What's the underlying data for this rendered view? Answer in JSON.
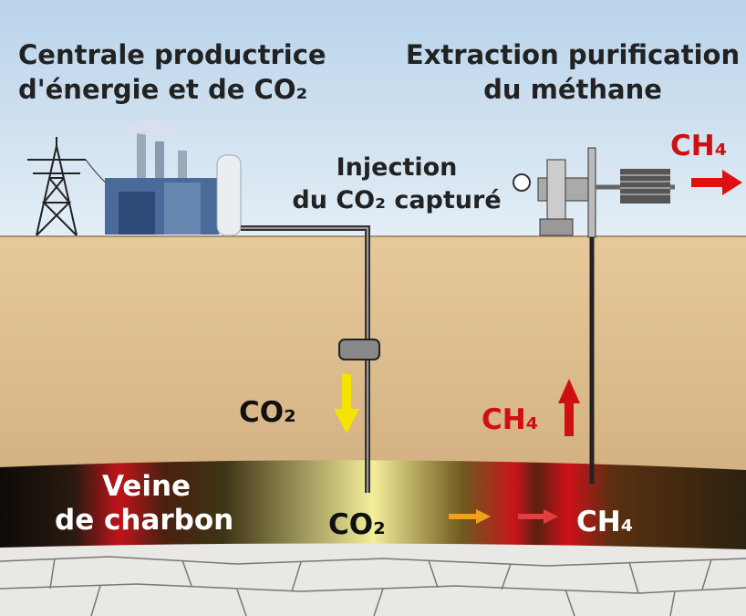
{
  "left_title": [
    "Centrale productrice",
    "d'énergie et de CO₂"
  ],
  "right_title": [
    "Extraction purification",
    "du méthane"
  ],
  "injection": [
    "Injection",
    "du CO₂ capturé"
  ],
  "ch4_out": "CH₄",
  "co2_down": "CO₂",
  "ch4_up": "CH₄",
  "seam": [
    "Veine",
    "de charbon"
  ],
  "co2_seam": "CO₂",
  "ch4_seam": "CH₄"
}
